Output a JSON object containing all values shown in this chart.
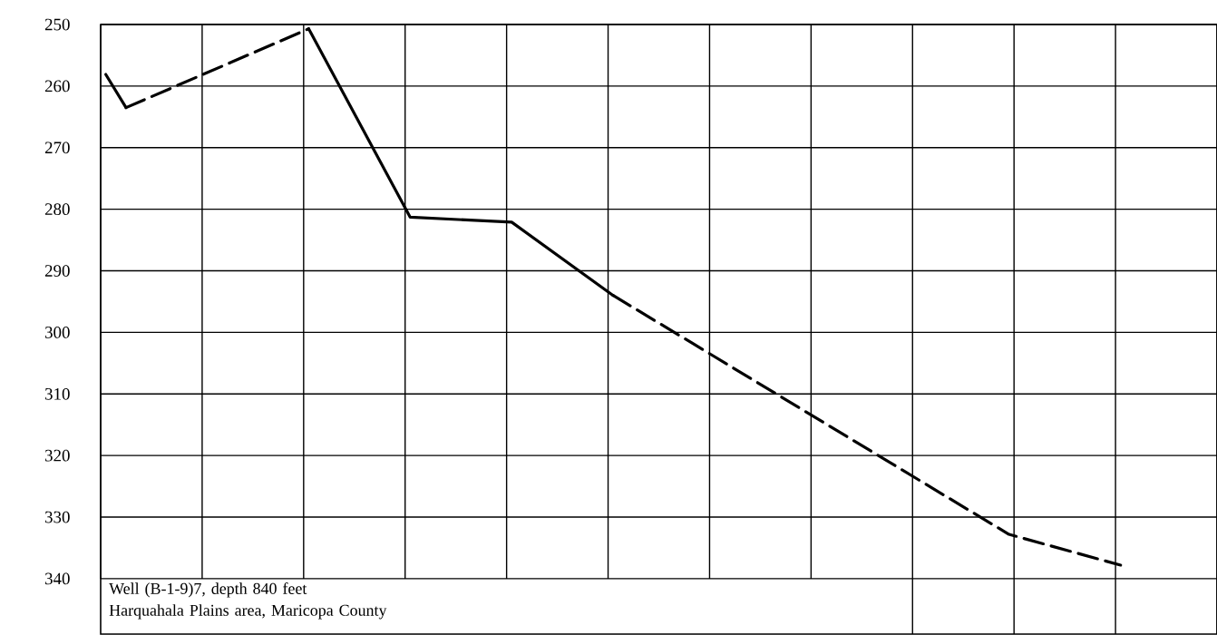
{
  "chart_data": {
    "type": "line",
    "categories": [
      null,
      null,
      null,
      null,
      null,
      null,
      null,
      null,
      null,
      null,
      null,
      null,
      null,
      null,
      null,
      null,
      null,
      null,
      null,
      null,
      null,
      null,
      null,
      null,
      null,
      null,
      null,
      null,
      null,
      null,
      null,
      null,
      null,
      null,
      null,
      null,
      null,
      null,
      null,
      null,
      null,
      null,
      null,
      null,
      null,
      null,
      null,
      null,
      null,
      null,
      null,
      null,
      null,
      null,
      null,
      null,
      null,
      null,
      null,
      null,
      null,
      null,
      null,
      null,
      null,
      null,
      null,
      null,
      null,
      null,
      null,
      null,
      null,
      null,
      null,
      null,
      null,
      null,
      null,
      null,
      null,
      null,
      null,
      null,
      null,
      null,
      null,
      null,
      null,
      null,
      null,
      null,
      null,
      null,
      null,
      null,
      null,
      null,
      null,
      null,
      null,
      null,
      null,
      null,
      null,
      null,
      null,
      null,
      null,
      null
    ],
    "ylim": [
      349,
      250
    ],
    "yticks": [
      250,
      260,
      270,
      280,
      290,
      300,
      310,
      320,
      330,
      340
    ],
    "grid": true,
    "series": [
      {
        "color": "#000000",
        "line_style": "solid",
        "values": [
          258.1,
          null,
          263.5,
          null,
          null,
          null,
          null,
          null,
          null,
          null,
          null,
          null,
          null,
          null,
          null,
          null,
          null,
          null,
          null,
          null,
          null,
          null,
          null,
          null,
          null,
          null,
          null,
          null,
          null,
          null,
          null,
          null,
          null,
          null,
          null,
          null,
          null,
          null,
          null,
          null,
          null,
          null,
          null,
          null,
          null,
          null,
          null,
          null,
          null,
          null,
          null,
          null,
          null,
          null,
          null,
          null,
          null,
          null,
          null,
          null,
          null,
          null,
          null,
          null,
          null,
          null,
          null,
          null,
          null,
          null,
          null,
          null,
          null,
          null,
          null,
          null,
          null,
          null,
          null,
          null,
          null,
          null,
          null,
          null,
          null,
          null,
          null,
          null,
          null,
          null,
          null,
          null,
          null,
          null,
          null,
          null,
          null,
          null,
          null,
          null,
          null,
          null,
          null,
          null,
          null,
          null,
          null,
          null,
          null,
          null
        ]
      },
      {
        "color": "#000000",
        "line_style": "dashed",
        "values": [
          null,
          null,
          263.5,
          null,
          null,
          null,
          null,
          null,
          null,
          null,
          null,
          null,
          null,
          null,
          null,
          null,
          null,
          null,
          null,
          null,
          250.7,
          null,
          null,
          null,
          null,
          null,
          null,
          null,
          null,
          null,
          null,
          null,
          null,
          null,
          null,
          null,
          null,
          null,
          null,
          null,
          null,
          null,
          null,
          null,
          null,
          null,
          null,
          null,
          null,
          null,
          null,
          null,
          null,
          null,
          null,
          null,
          null,
          null,
          null,
          null,
          null,
          null,
          null,
          null,
          null,
          null,
          null,
          null,
          null,
          null,
          null,
          null,
          null,
          null,
          null,
          null,
          null,
          null,
          null,
          null,
          null,
          null,
          null,
          null,
          null,
          null,
          null,
          null,
          null,
          null,
          null,
          null,
          null,
          null,
          null,
          null,
          null,
          null,
          null,
          null,
          null,
          null,
          null,
          null,
          null,
          null,
          null,
          null,
          null,
          null
        ]
      },
      {
        "color": "#000000",
        "line_style": "solid",
        "values": [
          null,
          null,
          null,
          null,
          null,
          null,
          null,
          null,
          null,
          null,
          null,
          null,
          null,
          null,
          null,
          null,
          null,
          null,
          null,
          null,
          250.7,
          null,
          null,
          null,
          null,
          null,
          null,
          null,
          null,
          null,
          281.3,
          null,
          null,
          null,
          null,
          null,
          null,
          null,
          null,
          null,
          282.1,
          null,
          null,
          null,
          null,
          null,
          null,
          null,
          null,
          null,
          294.0,
          null,
          null,
          null,
          null,
          null,
          null,
          null,
          null,
          null,
          null,
          null,
          null,
          null,
          null,
          null,
          null,
          null,
          null,
          null,
          null,
          null,
          null,
          null,
          null,
          null,
          null,
          null,
          null,
          null,
          null,
          null,
          null,
          null,
          null,
          null,
          null,
          null,
          null,
          null,
          null,
          null,
          null,
          null,
          null,
          null,
          null,
          null,
          null,
          null,
          null,
          null,
          null,
          null,
          null,
          null,
          null,
          null,
          null,
          null
        ]
      },
      {
        "color": "#000000",
        "line_style": "dashed",
        "values": [
          null,
          null,
          null,
          null,
          null,
          null,
          null,
          null,
          null,
          null,
          null,
          null,
          null,
          null,
          null,
          null,
          null,
          null,
          null,
          null,
          null,
          null,
          null,
          null,
          null,
          null,
          null,
          null,
          null,
          null,
          null,
          null,
          null,
          null,
          null,
          null,
          null,
          null,
          null,
          null,
          null,
          null,
          null,
          null,
          null,
          null,
          null,
          null,
          null,
          null,
          294.0,
          null,
          null,
          null,
          null,
          null,
          null,
          null,
          null,
          null,
          null,
          null,
          null,
          null,
          null,
          null,
          null,
          null,
          null,
          null,
          null,
          null,
          null,
          null,
          null,
          null,
          null,
          null,
          null,
          null,
          null,
          null,
          null,
          null,
          null,
          null,
          null,
          null,
          null,
          332.8,
          null,
          null,
          null,
          null,
          null,
          null,
          null,
          null,
          null,
          null,
          337.8,
          null,
          null,
          null,
          null,
          null,
          null,
          null,
          null,
          null
        ]
      }
    ],
    "annotations": [
      "Well (B-1-9)7,  depth 840 feet",
      "Harquahala Plains area,  Maricopa County"
    ]
  }
}
